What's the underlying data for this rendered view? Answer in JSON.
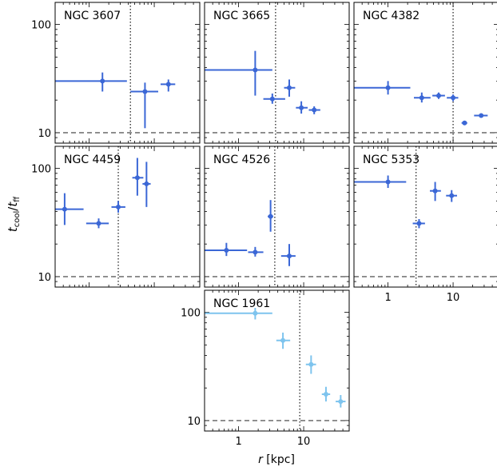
{
  "figure": {
    "xlabel_var": "r",
    "xlabel_unit": "[kpc]",
    "ylabel_num": "t",
    "ylabel_num_sub": "cool",
    "ylabel_sep": "/",
    "ylabel_den": "t",
    "ylabel_den_sub": "ff"
  },
  "chart_data": [
    {
      "type": "scatter",
      "title": "NGC 3607",
      "xscale": "log",
      "yscale": "log",
      "xlim": [
        0.3,
        50
      ],
      "ylim": [
        8,
        160
      ],
      "color": "#3b67d6",
      "vline_x": 4.3,
      "hline_y": 10,
      "xticks": [],
      "yticks": [
        "100",
        "10"
      ],
      "points": [
        {
          "x": 1.6,
          "y": 30,
          "xlo": 0.3,
          "xhi": 3.8,
          "ylo": 24,
          "yhi": 36
        },
        {
          "x": 7.2,
          "y": 24,
          "xlo": 4.3,
          "xhi": 11.5,
          "ylo": 11,
          "yhi": 29
        },
        {
          "x": 16.5,
          "y": 28,
          "xlo": 12.5,
          "xhi": 21,
          "ylo": 24,
          "yhi": 31
        }
      ]
    },
    {
      "type": "scatter",
      "title": "NGC 3665",
      "xscale": "log",
      "yscale": "log",
      "xlim": [
        0.3,
        50
      ],
      "ylim": [
        8,
        160
      ],
      "color": "#3b67d6",
      "vline_x": 3.7,
      "hline_y": 10,
      "xticks": [],
      "yticks": [],
      "points": [
        {
          "x": 1.8,
          "y": 38,
          "xlo": 0.3,
          "xhi": 3.3,
          "ylo": 22,
          "yhi": 57
        },
        {
          "x": 3.3,
          "y": 20.5,
          "xlo": 2.4,
          "xhi": 5.2,
          "ylo": 18.5,
          "yhi": 23
        },
        {
          "x": 6.0,
          "y": 26,
          "xlo": 5.0,
          "xhi": 7.4,
          "ylo": 21.5,
          "yhi": 31
        },
        {
          "x": 9.2,
          "y": 17,
          "xlo": 7.6,
          "xhi": 11.5,
          "ylo": 15,
          "yhi": 19.5
        },
        {
          "x": 14.5,
          "y": 16.2,
          "xlo": 12.0,
          "xhi": 18.0,
          "ylo": 14.8,
          "yhi": 17.5
        }
      ]
    },
    {
      "type": "scatter",
      "title": "NGC 4382",
      "xscale": "log",
      "yscale": "log",
      "xlim": [
        0.3,
        50
      ],
      "ylim": [
        8,
        160
      ],
      "color": "#3b67d6",
      "vline_x": 10,
      "hline_y": 10,
      "xticks": [],
      "yticks": [],
      "points": [
        {
          "x": 1.0,
          "y": 26,
          "xlo": 0.3,
          "xhi": 2.2,
          "ylo": 22.5,
          "yhi": 30
        },
        {
          "x": 3.3,
          "y": 21,
          "xlo": 2.5,
          "xhi": 4.5,
          "ylo": 19,
          "yhi": 23.5
        },
        {
          "x": 6.0,
          "y": 22,
          "xlo": 4.8,
          "xhi": 7.5,
          "ylo": 20.5,
          "yhi": 23.5
        },
        {
          "x": 10.0,
          "y": 21,
          "xlo": 8.0,
          "xhi": 12.0,
          "ylo": 19.5,
          "yhi": 22.5
        },
        {
          "x": 15.0,
          "y": 12.3,
          "xlo": 13.5,
          "xhi": 16.5,
          "ylo": 12.0,
          "yhi": 12.6
        },
        {
          "x": 27.0,
          "y": 14.4,
          "xlo": 21.0,
          "xhi": 34.0,
          "ylo": 14.1,
          "yhi": 14.7
        }
      ]
    },
    {
      "type": "scatter",
      "title": "NGC 4459",
      "xscale": "log",
      "yscale": "log",
      "xlim": [
        0.3,
        50
      ],
      "ylim": [
        8,
        160
      ],
      "color": "#3b67d6",
      "vline_x": 2.8,
      "hline_y": 10,
      "xticks": [],
      "yticks": [
        "100",
        "10"
      ],
      "points": [
        {
          "x": 0.42,
          "y": 42,
          "xlo": 0.3,
          "xhi": 0.82,
          "ylo": 30,
          "yhi": 59
        },
        {
          "x": 1.4,
          "y": 31,
          "xlo": 0.9,
          "xhi": 2.0,
          "ylo": 28,
          "yhi": 34.5
        },
        {
          "x": 2.8,
          "y": 44,
          "xlo": 2.2,
          "xhi": 3.6,
          "ylo": 39,
          "yhi": 50
        },
        {
          "x": 5.5,
          "y": 82,
          "xlo": 4.6,
          "xhi": 6.8,
          "ylo": 56,
          "yhi": 125
        },
        {
          "x": 7.6,
          "y": 72,
          "xlo": 6.6,
          "xhi": 8.8,
          "ylo": 44,
          "yhi": 115
        }
      ]
    },
    {
      "type": "scatter",
      "title": "NGC 4526",
      "xscale": "log",
      "yscale": "log",
      "xlim": [
        0.3,
        50
      ],
      "ylim": [
        8,
        160
      ],
      "color": "#3b67d6",
      "vline_x": 3.6,
      "hline_y": 10,
      "xticks": [],
      "yticks": [],
      "points": [
        {
          "x": 0.65,
          "y": 17.5,
          "xlo": 0.3,
          "xhi": 1.35,
          "ylo": 15.5,
          "yhi": 20.5
        },
        {
          "x": 1.8,
          "y": 16.8,
          "xlo": 1.4,
          "xhi": 2.4,
          "ylo": 15.3,
          "yhi": 18.8
        },
        {
          "x": 3.1,
          "y": 36,
          "xlo": 2.8,
          "xhi": 3.4,
          "ylo": 26,
          "yhi": 51
        },
        {
          "x": 6.0,
          "y": 15.5,
          "xlo": 4.5,
          "xhi": 7.5,
          "ylo": 12.5,
          "yhi": 20
        }
      ]
    },
    {
      "type": "scatter",
      "title": "NGC 5353",
      "xscale": "log",
      "yscale": "log",
      "xlim": [
        0.3,
        50
      ],
      "ylim": [
        8,
        160
      ],
      "color": "#3b67d6",
      "vline_x": 2.7,
      "hline_y": 10,
      "xticks": [
        "1",
        "10"
      ],
      "yticks": [],
      "points": [
        {
          "x": 1.0,
          "y": 75,
          "xlo": 0.3,
          "xhi": 1.9,
          "ylo": 66,
          "yhi": 86
        },
        {
          "x": 3.0,
          "y": 31,
          "xlo": 2.4,
          "xhi": 3.7,
          "ylo": 28,
          "yhi": 34
        },
        {
          "x": 5.3,
          "y": 62,
          "xlo": 4.4,
          "xhi": 6.5,
          "ylo": 50,
          "yhi": 75
        },
        {
          "x": 9.5,
          "y": 56,
          "xlo": 7.8,
          "xhi": 11.5,
          "ylo": 49,
          "yhi": 63
        }
      ]
    },
    {
      "type": "scatter",
      "title": "NGC 1961",
      "xscale": "log",
      "yscale": "log",
      "xlim": [
        0.3,
        50
      ],
      "ylim": [
        8,
        160
      ],
      "color": "#7ec4ee",
      "vline_x": 8.7,
      "hline_y": 10,
      "xticks": [
        "1",
        "10"
      ],
      "yticks": [
        "100",
        "10"
      ],
      "points": [
        {
          "x": 1.8,
          "y": 98,
          "xlo": 0.3,
          "xhi": 3.3,
          "ylo": 86,
          "yhi": 110
        },
        {
          "x": 4.8,
          "y": 55,
          "xlo": 3.8,
          "xhi": 6.2,
          "ylo": 46,
          "yhi": 65
        },
        {
          "x": 13.0,
          "y": 33,
          "xlo": 10.8,
          "xhi": 15.5,
          "ylo": 27,
          "yhi": 40
        },
        {
          "x": 22.0,
          "y": 17.5,
          "xlo": 19.0,
          "xhi": 25.5,
          "ylo": 15.0,
          "yhi": 20.5
        },
        {
          "x": 37.0,
          "y": 15.0,
          "xlo": 31.0,
          "xhi": 44.0,
          "ylo": 13.2,
          "yhi": 17.2
        }
      ]
    }
  ]
}
